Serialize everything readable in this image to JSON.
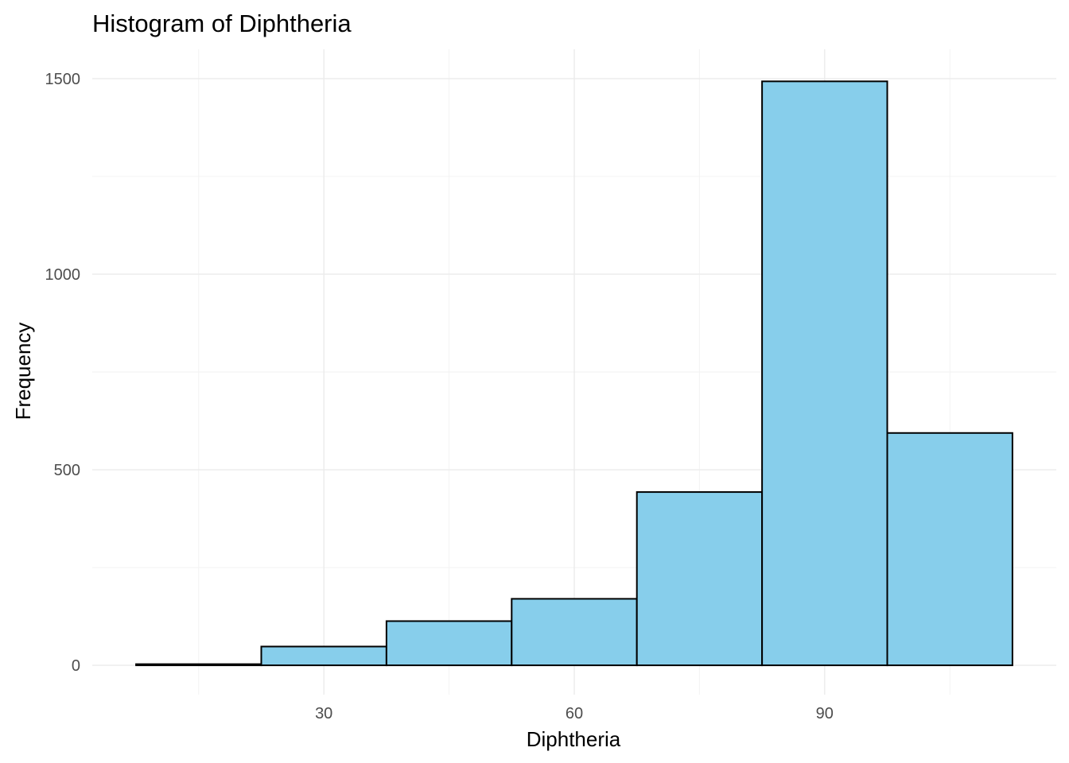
{
  "chart_data": {
    "type": "bar",
    "title": "Histogram of Diphtheria",
    "xlabel": "Diphtheria",
    "ylabel": "Frequency",
    "bin_width": 15,
    "bins": [
      {
        "x_start": 7.5,
        "x_end": 22.5,
        "count": 3
      },
      {
        "x_start": 22.5,
        "x_end": 37.5,
        "count": 48
      },
      {
        "x_start": 37.5,
        "x_end": 52.5,
        "count": 113
      },
      {
        "x_start": 52.5,
        "x_end": 67.5,
        "count": 170
      },
      {
        "x_start": 67.5,
        "x_end": 82.5,
        "count": 443
      },
      {
        "x_start": 82.5,
        "x_end": 97.5,
        "count": 1493
      },
      {
        "x_start": 97.5,
        "x_end": 112.5,
        "count": 594
      }
    ],
    "xlim": [
      2.25,
      117.75
    ],
    "ylim": [
      -75,
      1575
    ],
    "x_ticks": [
      30,
      60,
      90
    ],
    "x_tick_labels": [
      "30",
      "60",
      "90"
    ],
    "x_minor_ticks": [
      15,
      45,
      75,
      105
    ],
    "y_ticks": [
      0,
      500,
      1000,
      1500
    ],
    "y_tick_labels": [
      "0",
      "500",
      "1000",
      "1500"
    ],
    "y_minor_ticks": [
      250,
      750,
      1250
    ],
    "grid": true,
    "bar_fill": "#87ceeb",
    "bar_outline": "#000000",
    "background": "#ffffff"
  }
}
